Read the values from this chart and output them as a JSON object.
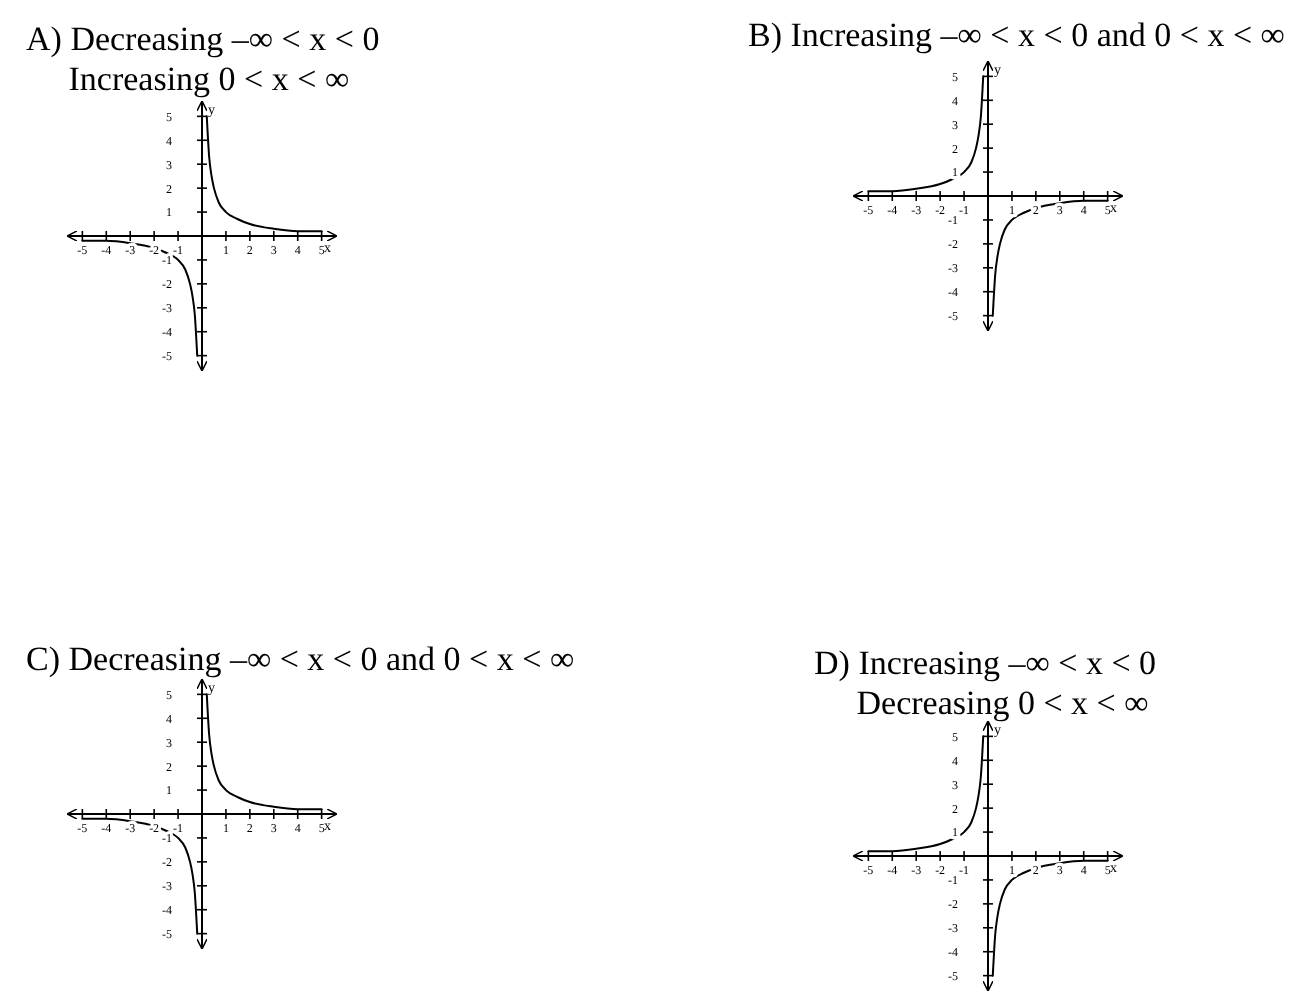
{
  "chart_data": [
    {
      "type": "line",
      "title": "A) Decreasing –∞ < x < 0\nIncreasing 0 < x < ∞",
      "xlabel": "x",
      "ylabel": "y",
      "xlim": [
        -5.6,
        5.6
      ],
      "ylim": [
        -5.6,
        5.6
      ],
      "xticks": [
        -5,
        -4,
        -3,
        -2,
        -1,
        1,
        2,
        3,
        4,
        5
      ],
      "yticks": [
        -5,
        -4,
        -3,
        -2,
        -1,
        1,
        2,
        3,
        4,
        5
      ],
      "marker": "none",
      "line_style": "solid",
      "series": [
        {
          "color": "#000000",
          "x": [
            -5,
            -4,
            -3,
            -2,
            -1.5,
            -1,
            -0.7,
            -0.5,
            -0.4,
            -0.3,
            -0.2
          ],
          "values": [
            -0.2,
            -0.2,
            -0.3,
            -0.5,
            -0.7,
            -1,
            -1.4,
            -2,
            -2.5,
            -3.3,
            -5
          ]
        },
        {
          "color": "#000000",
          "x": [
            0.2,
            0.3,
            0.4,
            0.5,
            0.7,
            1,
            1.5,
            2,
            3,
            4,
            5
          ],
          "values": [
            5,
            3.3,
            2.5,
            2,
            1.4,
            1,
            0.7,
            0.5,
            0.3,
            0.2,
            0.2
          ]
        }
      ]
    },
    {
      "type": "line",
      "title": "B) Increasing –∞ < x < 0 and 0 < x < ∞",
      "xlabel": "x",
      "ylabel": "y",
      "xlim": [
        -5.6,
        5.6
      ],
      "ylim": [
        -5.6,
        5.6
      ],
      "xticks": [
        -5,
        -4,
        -3,
        -2,
        -1,
        1,
        2,
        3,
        4,
        5
      ],
      "yticks": [
        -5,
        -4,
        -3,
        -2,
        -1,
        1,
        2,
        3,
        4,
        5
      ],
      "marker": "none",
      "line_style": "solid",
      "series": [
        {
          "color": "#000000",
          "x": [
            -5,
            -4,
            -3,
            -2,
            -1.5,
            -1,
            -0.7,
            -0.5,
            -0.4,
            -0.3,
            -0.2
          ],
          "values": [
            0.2,
            0.2,
            0.3,
            0.5,
            0.7,
            1,
            1.4,
            2,
            2.5,
            3.3,
            5
          ]
        },
        {
          "color": "#000000",
          "x": [
            0.2,
            0.3,
            0.4,
            0.5,
            0.7,
            1,
            1.5,
            2,
            3,
            4,
            5
          ],
          "values": [
            -5,
            -3.3,
            -2.5,
            -2,
            -1.4,
            -1,
            -0.7,
            -0.5,
            -0.3,
            -0.2,
            -0.2
          ]
        }
      ]
    },
    {
      "type": "line",
      "title": "C) Decreasing –∞ < x < 0 and 0 < x < ∞",
      "xlabel": "x",
      "ylabel": "y",
      "xlim": [
        -5.6,
        5.6
      ],
      "ylim": [
        -5.6,
        5.6
      ],
      "xticks": [
        -5,
        -4,
        -3,
        -2,
        -1,
        1,
        2,
        3,
        4,
        5
      ],
      "yticks": [
        -5,
        -4,
        -3,
        -2,
        -1,
        1,
        2,
        3,
        4,
        5
      ],
      "marker": "none",
      "line_style": "solid",
      "series": [
        {
          "color": "#000000",
          "x": [
            -5,
            -4,
            -3,
            -2,
            -1.5,
            -1,
            -0.7,
            -0.5,
            -0.4,
            -0.3,
            -0.2
          ],
          "values": [
            -0.2,
            -0.2,
            -0.3,
            -0.5,
            -0.7,
            -1,
            -1.4,
            -2,
            -2.5,
            -3.3,
            -5
          ]
        },
        {
          "color": "#000000",
          "x": [
            0.2,
            0.3,
            0.4,
            0.5,
            0.7,
            1,
            1.5,
            2,
            3,
            4,
            5
          ],
          "values": [
            5,
            3.3,
            2.5,
            2,
            1.4,
            1,
            0.7,
            0.5,
            0.3,
            0.2,
            0.2
          ]
        }
      ]
    },
    {
      "type": "line",
      "title": "D) Increasing –∞ < x < 0\nDecreasing 0 < x < ∞",
      "xlabel": "x",
      "ylabel": "y",
      "xlim": [
        -5.6,
        5.6
      ],
      "ylim": [
        -5.6,
        5.6
      ],
      "xticks": [
        -5,
        -4,
        -3,
        -2,
        -1,
        1,
        2,
        3,
        4,
        5
      ],
      "yticks": [
        -5,
        -4,
        -3,
        -2,
        -1,
        1,
        2,
        3,
        4,
        5
      ],
      "marker": "none",
      "line_style": "solid",
      "series": [
        {
          "color": "#000000",
          "x": [
            -5,
            -4,
            -3,
            -2,
            -1.5,
            -1,
            -0.7,
            -0.5,
            -0.4,
            -0.3,
            -0.2
          ],
          "values": [
            0.2,
            0.2,
            0.3,
            0.5,
            0.7,
            1,
            1.4,
            2,
            2.5,
            3.3,
            5
          ]
        },
        {
          "color": "#000000",
          "x": [
            0.2,
            0.3,
            0.4,
            0.5,
            0.7,
            1,
            1.5,
            2,
            3,
            4,
            5
          ],
          "values": [
            -5,
            -3.3,
            -2.5,
            -2,
            -1.4,
            -1,
            -0.7,
            -0.5,
            -0.3,
            -0.2,
            -0.2
          ]
        }
      ]
    }
  ]
}
